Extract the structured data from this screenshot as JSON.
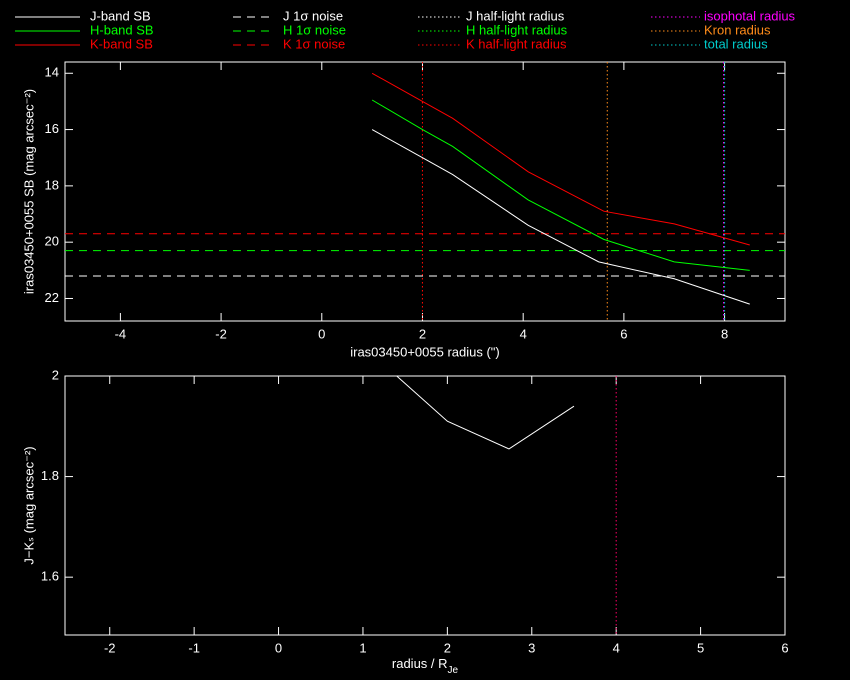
{
  "chart_data": [
    {
      "type": "line",
      "x_label": "iras03450+0055 radius (\")",
      "y_label": "iras03450+0055 SB (mag arcsec⁻²)",
      "xlim": [
        -5.1,
        9.2
      ],
      "ylim": [
        22.8,
        13.6
      ],
      "xticks": [
        -4,
        -2,
        0,
        2,
        4,
        6,
        8
      ],
      "yticks": [
        14,
        16,
        18,
        20,
        22
      ],
      "series": [
        {
          "name": "J-band SB",
          "color": "#ffffff",
          "style": "solid",
          "x": [
            1,
            2,
            2.6,
            4.1,
            5.5,
            7,
            8.5
          ],
          "values": [
            16.0,
            17.0,
            17.6,
            19.4,
            20.7,
            21.3,
            22.2
          ]
        },
        {
          "name": "H-band SB",
          "color": "#00ff00",
          "style": "solid",
          "x": [
            1,
            2,
            2.6,
            4.1,
            5.6,
            7,
            8.5
          ],
          "values": [
            14.95,
            16.0,
            16.6,
            18.5,
            19.9,
            20.7,
            21.0
          ]
        },
        {
          "name": "K-band SB",
          "color": "#ff0000",
          "style": "solid",
          "x": [
            1,
            2,
            2.6,
            4.1,
            5.6,
            7,
            8.5
          ],
          "values": [
            14.0,
            15.0,
            15.6,
            17.5,
            18.9,
            19.35,
            20.1
          ]
        }
      ],
      "hlines": [
        {
          "name": "J 1σ noise",
          "color": "#ffffff",
          "style": "dashed",
          "value": 21.2
        },
        {
          "name": "H 1σ noise",
          "color": "#00ff00",
          "style": "dashed",
          "value": 20.3
        },
        {
          "name": "K 1σ noise",
          "color": "#ff0000",
          "style": "dashed",
          "value": 19.7
        }
      ],
      "vlines": [
        {
          "name": "J half-light radius",
          "color": "#ffffff",
          "style": "dotted",
          "value": 2.0
        },
        {
          "name": "H half-light radius",
          "color": "#00ff00",
          "style": "dotted",
          "value": 2.0
        },
        {
          "name": "K half-light radius",
          "color": "#ff0000",
          "style": "dotted",
          "value": 2.0
        },
        {
          "name": "isophotal radius",
          "color": "#ff00ff",
          "style": "dotted",
          "value": 7.98
        },
        {
          "name": "Kron radius",
          "color": "#ff8c1a",
          "style": "dotted",
          "value": 5.67
        },
        {
          "name": "total radius",
          "color": "#00cccc",
          "style": "dotted",
          "value": 8.0
        }
      ]
    },
    {
      "type": "line",
      "x_label": {
        "text": "radius / R",
        "sub": "Je"
      },
      "y_label": "J−Kₛ (mag arcsec⁻²)",
      "xlim": [
        -2.53,
        6.0
      ],
      "ylim": [
        1.485,
        2.0
      ],
      "xticks": [
        -2,
        -1,
        0,
        1,
        2,
        3,
        4,
        5,
        6
      ],
      "yticks": [
        1.6,
        1.8,
        2
      ],
      "series": [
        {
          "color": "#ffffff",
          "style": "solid",
          "x": [
            1.4,
            2.0,
            2.73,
            3.5
          ],
          "values": [
            2.0,
            1.91,
            1.855,
            1.94
          ]
        }
      ],
      "vlines": [
        {
          "color": "#ff0066",
          "style": "dotted",
          "value": 4.0
        }
      ]
    }
  ]
}
